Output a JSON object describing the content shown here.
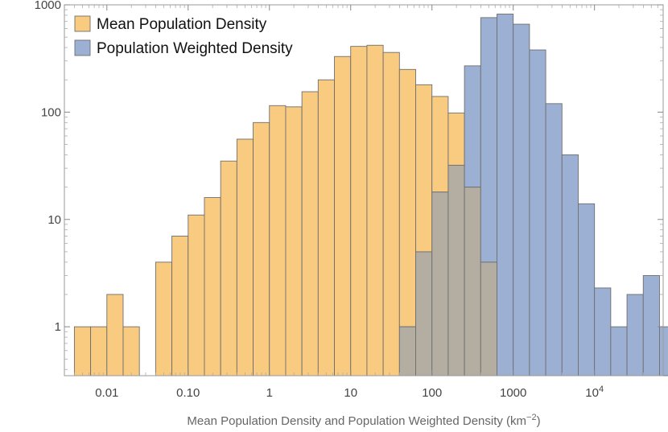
{
  "chart_data": {
    "type": "histogram",
    "title": "",
    "xscale": "log",
    "yscale": "log",
    "xlabel": "Mean Population Density and Population Weighted Density (km",
    "xlabel_sup": "−2",
    "xlabel_suffix": ")",
    "ylabel": "",
    "xlim": [
      0.003,
      70000
    ],
    "ylim": [
      0.35,
      1000
    ],
    "x_ticks": [
      {
        "value": 0.01,
        "label": "0.01"
      },
      {
        "value": 0.1,
        "label": "0.10"
      },
      {
        "value": 1,
        "label": "1"
      },
      {
        "value": 10,
        "label": "10"
      },
      {
        "value": 100,
        "label": "100"
      },
      {
        "value": 1000,
        "label": "1000"
      },
      {
        "value": 10000,
        "label": "10",
        "sup": "4"
      }
    ],
    "y_ticks": [
      {
        "value": 1,
        "label": "1"
      },
      {
        "value": 10,
        "label": "10"
      },
      {
        "value": 100,
        "label": "100"
      },
      {
        "value": 1000,
        "label": "1000"
      }
    ],
    "bin_log_start": -2.4,
    "bin_log_width": 0.2,
    "legend_position": "top-left",
    "series": [
      {
        "name": "Mean Population Density",
        "color": "#F9CB80",
        "counts": [
          1,
          1,
          2,
          1,
          0,
          4,
          7,
          11,
          16,
          35,
          56,
          80,
          115,
          112,
          155,
          200,
          330,
          410,
          420,
          360,
          250,
          180,
          140,
          98,
          20,
          4,
          0,
          0,
          0,
          0,
          0,
          0,
          0,
          0,
          0,
          0
        ]
      },
      {
        "name": "Population Weighted Density",
        "color": "#9CB0D4",
        "counts": [
          0,
          0,
          0,
          0,
          0,
          0,
          0,
          0,
          0,
          0,
          0,
          0,
          0,
          0,
          0,
          0,
          0,
          0,
          0,
          0,
          1,
          5,
          18,
          32,
          270,
          760,
          820,
          660,
          380,
          120,
          40,
          14,
          2.3,
          1,
          2,
          3,
          1
        ]
      }
    ],
    "overlap_color": "#B3ADA2"
  }
}
